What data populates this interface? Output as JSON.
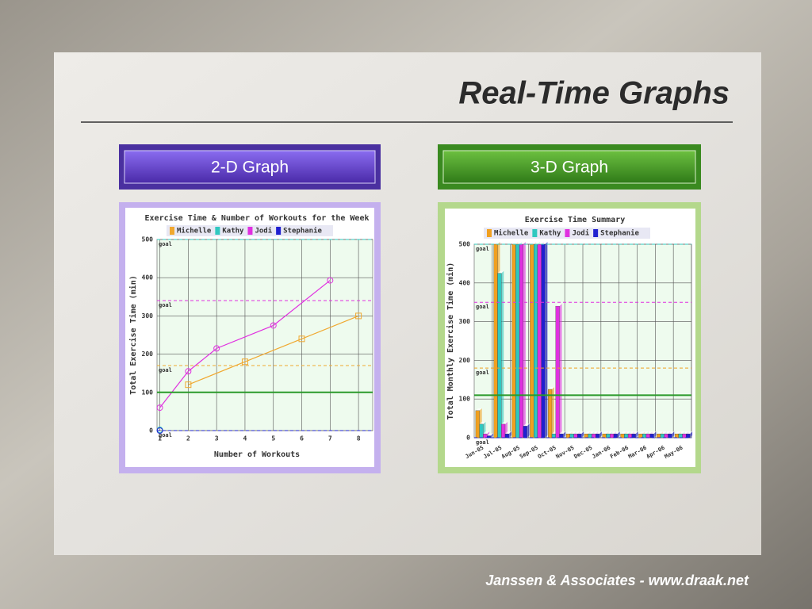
{
  "slide": {
    "title": "Real-Time Graphs",
    "footer": "Janssen & Associates - www.draak.net"
  },
  "panels": [
    {
      "label": "2-D Graph"
    },
    {
      "label": "3-D Graph"
    }
  ],
  "chart_data": [
    {
      "type": "line",
      "title": "Exercise Time & Number of Workouts for the Week",
      "x_label": "Number of Workouts",
      "y_label": "Total Exercise Time (min)",
      "xlim": [
        0.9,
        8.5
      ],
      "xticks": [
        1,
        2,
        3,
        4,
        5,
        6,
        7,
        8
      ],
      "ylim": [
        0,
        500
      ],
      "yticks": [
        0,
        100,
        200,
        300,
        400,
        500
      ],
      "grid": true,
      "goal_label": "goal",
      "reference_line": 100,
      "reference_color": "#2a9a2a",
      "series": [
        {
          "name": "Michelle",
          "color": "#f0a830",
          "marker": "square",
          "goal": 170,
          "x": [
            2,
            4,
            6,
            8
          ],
          "values": [
            120,
            180,
            240,
            300
          ]
        },
        {
          "name": "Kathy",
          "color": "#30c8c0",
          "marker": "circle",
          "goal": 500,
          "x": [
            1
          ],
          "values": [
            2
          ]
        },
        {
          "name": "Jodi",
          "color": "#e030e0",
          "marker": "circle",
          "goal": 340,
          "x": [
            1,
            2,
            3,
            5,
            7
          ],
          "values": [
            60,
            155,
            215,
            275,
            393
          ]
        },
        {
          "name": "Stephanie",
          "color": "#2020d0",
          "marker": "circle",
          "goal": 0,
          "x": [
            1
          ],
          "values": [
            0
          ]
        }
      ]
    },
    {
      "type": "bar",
      "title": "Exercise Time Summary",
      "y_label": "Total Monthly Exercise Time (min)",
      "categories": [
        "Jun-05",
        "Jul-05",
        "Aug-05",
        "Sep-05",
        "Oct-05",
        "Nov-05",
        "Dec-05",
        "Jan-06",
        "Feb-06",
        "Mar-06",
        "Apr-06",
        "May-06"
      ],
      "ylim": [
        0,
        500
      ],
      "yticks": [
        0,
        100,
        200,
        300,
        400,
        500
      ],
      "grid": true,
      "goal_label": "goal",
      "reference_line": 110,
      "reference_color": "#2a9a2a",
      "series": [
        {
          "name": "Michelle",
          "color": "#f0a020",
          "goal": 180,
          "values": [
            70,
            500,
            500,
            500,
            125,
            10,
            10,
            10,
            10,
            10,
            10,
            10
          ]
        },
        {
          "name": "Kathy",
          "color": "#30c8c0",
          "goal": 500,
          "values": [
            35,
            425,
            500,
            500,
            10,
            10,
            10,
            10,
            10,
            10,
            10,
            10
          ]
        },
        {
          "name": "Jodi",
          "color": "#e030e0",
          "goal": 350,
          "values": [
            10,
            35,
            500,
            500,
            340,
            10,
            10,
            10,
            10,
            10,
            10,
            10
          ]
        },
        {
          "name": "Stephanie",
          "color": "#2020d0",
          "goal": 0,
          "values": [
            5,
            10,
            30,
            500,
            10,
            10,
            10,
            10,
            10,
            10,
            10,
            10
          ]
        }
      ]
    }
  ]
}
